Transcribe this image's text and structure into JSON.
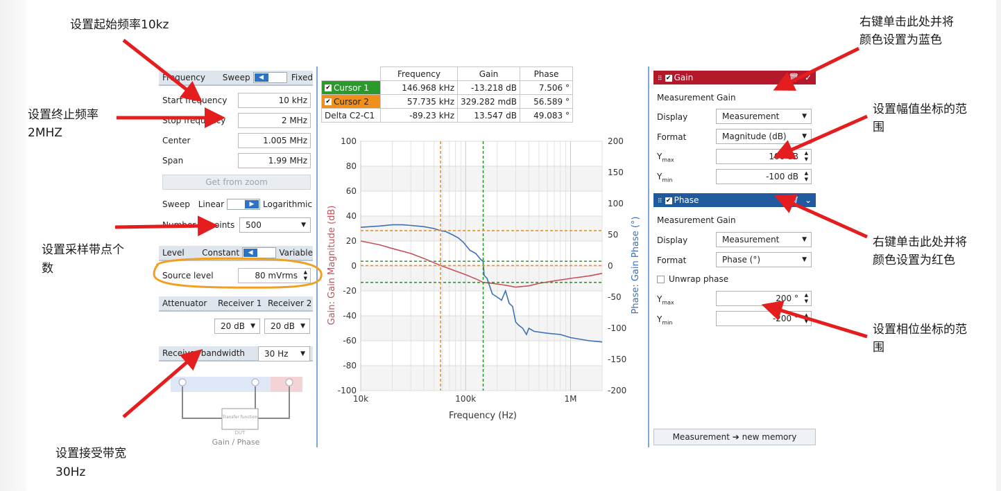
{
  "annotations": {
    "start_freq": "设置起始频率10kz",
    "stop_freq_line1": "设置终止频率",
    "stop_freq_line2": "2MHZ",
    "points_line1": "设置采样带点个",
    "points_line2": "数",
    "bandwidth_line1": "设置接受带宽",
    "bandwidth_line2": "30Hz",
    "gain_color_line1": "右键单击此处并将",
    "gain_color_line2": "颜色设置为蓝色",
    "gain_range_line1": "设置幅值坐标的范",
    "gain_range_line2": "围",
    "phase_color_line1": "右键单击此处并将",
    "phase_color_line2": "颜色设置为红色",
    "phase_range_line1": "设置相位坐标的范",
    "phase_range_line2": "围"
  },
  "left_panel": {
    "frequency": {
      "label": "Frequency",
      "sweep": "Sweep",
      "fixed": "Fixed",
      "start_label": "Start frequency",
      "start_value": "10 kHz",
      "stop_label": "Stop frequency",
      "stop_value": "2 MHz",
      "center_label": "Center",
      "center_value": "1.005 MHz",
      "span_label": "Span",
      "span_value": "1.99 MHz",
      "get_from_zoom": "Get from zoom"
    },
    "sweep": {
      "label": "Sweep",
      "linear": "Linear",
      "logarithmic": "Logarithmic",
      "points_label": "Number of points",
      "points_value": "500"
    },
    "level": {
      "label": "Level",
      "constant": "Constant",
      "variable": "Variable",
      "source_label": "Source level",
      "source_value": "80 mVrms"
    },
    "attenuator": {
      "label": "Attenuator",
      "receiver1": "Receiver 1",
      "receiver2": "Receiver 2",
      "r1_value": "20 dB",
      "r2_value": "20 dB"
    },
    "bandwidth": {
      "label": "Receiver bandwidth",
      "value": "30 Hz"
    },
    "diagram": {
      "dut_label": "DUT",
      "transfer_label": "Transfer function",
      "caption": "Gain / Phase"
    }
  },
  "cursor_table": {
    "headers": [
      "Frequency",
      "Gain",
      "Phase"
    ],
    "rows": [
      {
        "name": "Cursor 1",
        "frequency": "146.968 kHz",
        "gain": "-13.218 dB",
        "phase": "7.506 °"
      },
      {
        "name": "Cursor 2",
        "frequency": "57.735 kHz",
        "gain": "329.282 mdB",
        "phase": "56.589 °"
      },
      {
        "name": "Delta C2-C1",
        "frequency": "-89.23 kHz",
        "gain": "13.547 dB",
        "phase": "49.083 °"
      }
    ]
  },
  "right_panel": {
    "gain": {
      "title": "Gain",
      "measurement_label": "Measurement",
      "measurement_value": "Gain",
      "display_label": "Display",
      "display_value": "Measurement",
      "format_label": "Format",
      "format_value": "Magnitude (dB)",
      "ymax_label": "Y",
      "ymax_sub": "max",
      "ymax_value": "100 dB",
      "ymin_label": "Y",
      "ymin_sub": "min",
      "ymin_value": "-100 dB",
      "header_color": "#b3192b"
    },
    "phase": {
      "title": "Phase",
      "measurement_label": "Measurement",
      "measurement_value": "Gain",
      "display_label": "Display",
      "display_value": "Measurement",
      "format_label": "Format",
      "format_value": "Phase (°)",
      "unwrap_label": "Unwrap phase",
      "ymax_label": "Y",
      "ymax_sub": "max",
      "ymax_value": "200 °",
      "ymin_label": "Y",
      "ymin_sub": "min",
      "ymin_value": "-200 °",
      "header_color": "#1f5a9e"
    },
    "new_memory": "Measurement ➔ new memory"
  },
  "chart_data": {
    "type": "line",
    "xlabel": "Frequency (Hz)",
    "ylabel_left": "Gain: Gain Magnitude (dB)",
    "ylabel_right": "Phase: Gain Phase (°)",
    "x_scale": "log",
    "xlim": [
      10000,
      2000000
    ],
    "ylim_left": [
      -100,
      100
    ],
    "ylim_right": [
      -200,
      200
    ],
    "x_ticks": [
      {
        "v": 10000,
        "label": "10k"
      },
      {
        "v": 100000,
        "label": "100k"
      },
      {
        "v": 1000000,
        "label": "1M"
      }
    ],
    "y_ticks_left": [
      100,
      80,
      60,
      40,
      20,
      0,
      -20,
      -40,
      -60,
      -80,
      -100
    ],
    "y_ticks_right": [
      200,
      150,
      100,
      50,
      0,
      -50,
      -100,
      -150,
      -200
    ],
    "grid": true,
    "series": [
      {
        "axis": "left",
        "color": "#c8505a",
        "x": [
          10000,
          15000,
          20000,
          30000,
          40000,
          57735,
          80000,
          100000,
          130000,
          146968,
          180000,
          220000,
          260000,
          300000,
          400000,
          500000,
          700000,
          1000000,
          1500000,
          2000000
        ],
        "y": [
          20,
          17,
          14,
          10,
          6,
          0.33,
          -4,
          -7,
          -11,
          -13.2,
          -14,
          -15,
          -16,
          -17,
          -16,
          -14,
          -12,
          -10,
          -8,
          -6
        ]
      },
      {
        "axis": "right",
        "color": "#3b70b3",
        "x": [
          10000,
          15000,
          20000,
          25000,
          30000,
          40000,
          50000,
          57735,
          65000,
          75000,
          85000,
          95000,
          110000,
          125000,
          140000,
          146968,
          150000,
          160000,
          180000,
          200000,
          220000,
          240000,
          260000,
          280000,
          300000,
          320000,
          350000,
          380000,
          400000,
          450000,
          600000,
          800000,
          1000000,
          1500000,
          2000000
        ],
        "y": [
          62,
          64,
          66,
          66,
          65,
          63,
          60,
          56.6,
          55,
          50,
          45,
          38,
          25,
          20,
          10,
          7.5,
          -15,
          -20,
          -45,
          -50,
          -55,
          -40,
          -60,
          -65,
          -90,
          -95,
          -100,
          -110,
          -100,
          -105,
          -108,
          -110,
          -115,
          -120,
          -122
        ]
      }
    ],
    "cursors": [
      {
        "name": "Cursor 1",
        "x": 146968,
        "gain": -13.218,
        "phase": 7.506,
        "color": "#2a9a2a"
      },
      {
        "name": "Cursor 2",
        "x": 57735,
        "gain": 0.329,
        "phase": 56.589,
        "color": "#f0901a"
      }
    ]
  }
}
